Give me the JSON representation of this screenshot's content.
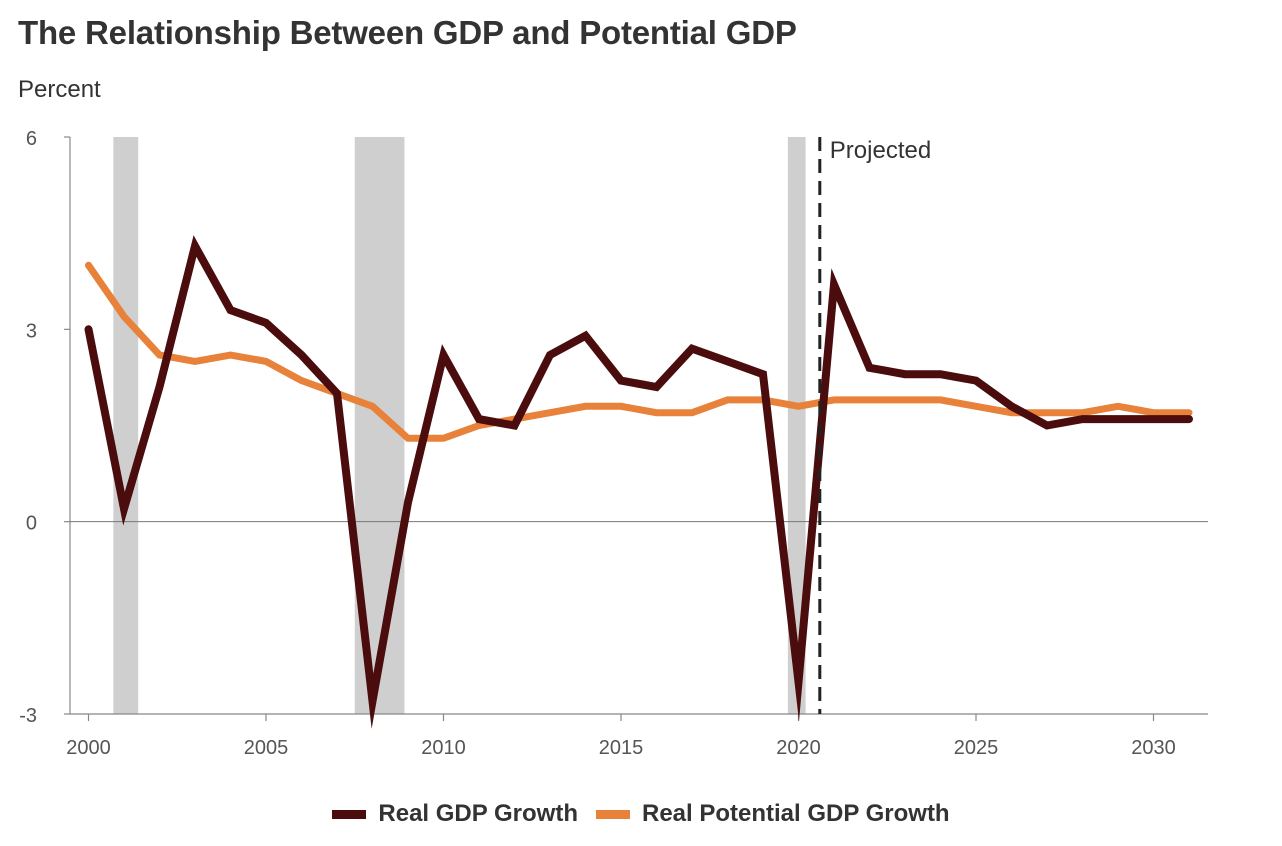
{
  "chart_data": {
    "type": "line",
    "title": "The Relationship Between GDP and Potential GDP",
    "ylabel": "Percent",
    "xlabel": "",
    "xlim": [
      1999.9,
      2031.5
    ],
    "ylim": [
      -3,
      6
    ],
    "x_ticks": [
      2000,
      2005,
      2010,
      2015,
      2020,
      2025,
      2030
    ],
    "y_ticks": [
      -3,
      0,
      3,
      6
    ],
    "annotation": "Projected",
    "projection_start": 2020.6,
    "recessions": [
      [
        2000.7,
        2001.4
      ],
      [
        2007.5,
        2008.9
      ],
      [
        2019.7,
        2020.2
      ]
    ],
    "series": [
      {
        "name": "Real GDP Growth",
        "color": "#4a0c0c",
        "x": [
          2000,
          2001,
          2002,
          2003,
          2004,
          2005,
          2006,
          2007,
          2008,
          2009,
          2010,
          2011,
          2012,
          2013,
          2014,
          2015,
          2016,
          2017,
          2018,
          2019,
          2020,
          2021,
          2022,
          2023,
          2024,
          2025,
          2026,
          2027,
          2028,
          2029,
          2030,
          2031
        ],
        "values": [
          3.0,
          0.2,
          2.1,
          4.3,
          3.3,
          3.1,
          2.6,
          2.0,
          -2.8,
          0.3,
          2.6,
          1.6,
          1.5,
          2.6,
          2.9,
          2.2,
          2.1,
          2.7,
          2.5,
          2.3,
          -2.5,
          3.7,
          2.4,
          2.3,
          2.3,
          2.2,
          1.8,
          1.5,
          1.6,
          1.6,
          1.6,
          1.6
        ]
      },
      {
        "name": "Real Potential GDP Growth",
        "color": "#e8823a",
        "x": [
          2000,
          2001,
          2002,
          2003,
          2004,
          2005,
          2006,
          2007,
          2008,
          2009,
          2010,
          2011,
          2012,
          2013,
          2014,
          2015,
          2016,
          2017,
          2018,
          2019,
          2020,
          2021,
          2022,
          2023,
          2024,
          2025,
          2026,
          2027,
          2028,
          2029,
          2030,
          2031
        ],
        "values": [
          4.0,
          3.2,
          2.6,
          2.5,
          2.6,
          2.5,
          2.2,
          2.0,
          1.8,
          1.3,
          1.3,
          1.5,
          1.6,
          1.7,
          1.8,
          1.8,
          1.7,
          1.7,
          1.9,
          1.9,
          1.8,
          1.9,
          1.9,
          1.9,
          1.9,
          1.8,
          1.7,
          1.7,
          1.7,
          1.8,
          1.7,
          1.7
        ]
      }
    ]
  },
  "colors": {
    "axis": "#888888",
    "zero_line": "#777777",
    "recession": "#cfcfcf",
    "tick_text": "#555555",
    "projection_line": "#222222"
  }
}
